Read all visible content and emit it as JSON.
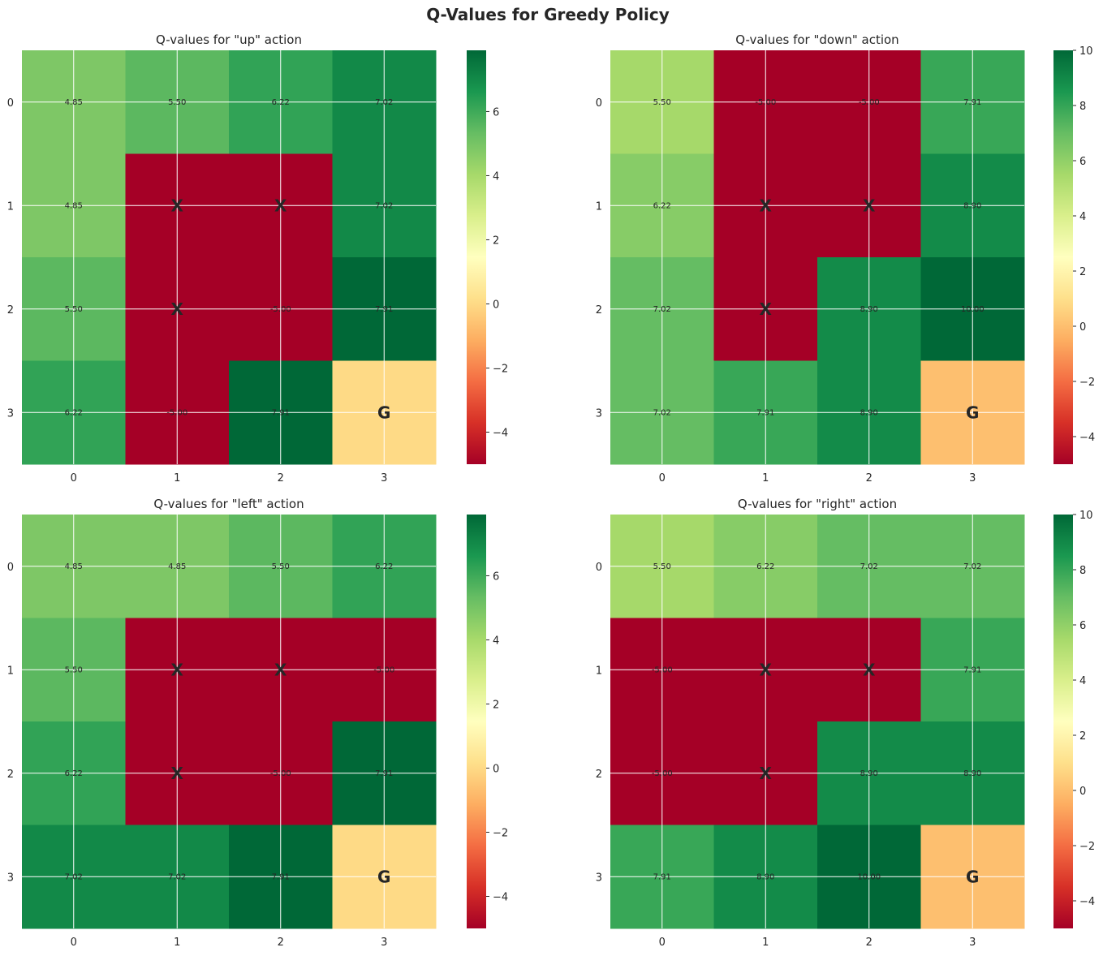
{
  "figure": {
    "title": "Q-Values for Greedy Policy"
  },
  "colormap": {
    "name": "RdYlGn",
    "stops": [
      "#a50026",
      "#d73027",
      "#f46d43",
      "#fdae61",
      "#fee08b",
      "#ffffbf",
      "#d9ef8b",
      "#a6d96a",
      "#66bd63",
      "#1a9850",
      "#006837"
    ]
  },
  "chart_data": [
    {
      "type": "heatmap",
      "title": "Q-values for \"up\" action",
      "x_ticks": [
        "0",
        "1",
        "2",
        "3"
      ],
      "y_ticks": [
        "0",
        "1",
        "2",
        "3"
      ],
      "values": [
        [
          4.85,
          5.5,
          6.22,
          7.02
        ],
        [
          4.85,
          -5.0,
          -5.0,
          7.02
        ],
        [
          5.5,
          -5.0,
          -5.0,
          7.91
        ],
        [
          6.22,
          -5.0,
          7.91,
          0.0
        ]
      ],
      "labels": [
        [
          "4.85",
          "5.50",
          "6.22",
          "7.02"
        ],
        [
          "4.85",
          "X",
          "X",
          "7.02"
        ],
        [
          "5.50",
          "X",
          "-5.00",
          "7.91"
        ],
        [
          "6.22",
          "-5.00",
          "7.91",
          "G"
        ]
      ],
      "vmin": -5.0,
      "vmax": 7.91,
      "colorbar_ticks": [
        -4,
        -2,
        0,
        2,
        4,
        6
      ],
      "colorbar_tick_labels": [
        "−4",
        "−2",
        "0",
        "2",
        "4",
        "6"
      ],
      "grid": true
    },
    {
      "type": "heatmap",
      "title": "Q-values for \"down\" action",
      "x_ticks": [
        "0",
        "1",
        "2",
        "3"
      ],
      "y_ticks": [
        "0",
        "1",
        "2",
        "3"
      ],
      "values": [
        [
          5.5,
          -5.0,
          -5.0,
          7.91
        ],
        [
          6.22,
          -5.0,
          -5.0,
          8.9
        ],
        [
          7.02,
          -5.0,
          8.9,
          10.0
        ],
        [
          7.02,
          7.91,
          8.9,
          0.0
        ]
      ],
      "labels": [
        [
          "5.50",
          "-5.00",
          "-5.00",
          "7.91"
        ],
        [
          "6.22",
          "X",
          "X",
          "8.90"
        ],
        [
          "7.02",
          "X",
          "8.90",
          "10.00"
        ],
        [
          "7.02",
          "7.91",
          "8.90",
          "G"
        ]
      ],
      "vmin": -5.0,
      "vmax": 10.0,
      "colorbar_ticks": [
        -4,
        -2,
        0,
        2,
        4,
        6,
        8,
        10
      ],
      "colorbar_tick_labels": [
        "−4",
        "−2",
        "0",
        "2",
        "4",
        "6",
        "8",
        "10"
      ],
      "grid": true
    },
    {
      "type": "heatmap",
      "title": "Q-values for \"left\" action",
      "x_ticks": [
        "0",
        "1",
        "2",
        "3"
      ],
      "y_ticks": [
        "0",
        "1",
        "2",
        "3"
      ],
      "values": [
        [
          4.85,
          4.85,
          5.5,
          6.22
        ],
        [
          5.5,
          -5.0,
          -5.0,
          -5.0
        ],
        [
          6.22,
          -5.0,
          -5.0,
          7.91
        ],
        [
          7.02,
          7.02,
          7.91,
          0.0
        ]
      ],
      "labels": [
        [
          "4.85",
          "4.85",
          "5.50",
          "6.22"
        ],
        [
          "5.50",
          "X",
          "X",
          "-5.00"
        ],
        [
          "6.22",
          "X",
          "-5.00",
          "7.91"
        ],
        [
          "7.02",
          "7.02",
          "7.91",
          "G"
        ]
      ],
      "vmin": -5.0,
      "vmax": 7.91,
      "colorbar_ticks": [
        -4,
        -2,
        0,
        2,
        4,
        6
      ],
      "colorbar_tick_labels": [
        "−4",
        "−2",
        "0",
        "2",
        "4",
        "6"
      ],
      "grid": true
    },
    {
      "type": "heatmap",
      "title": "Q-values for \"right\" action",
      "x_ticks": [
        "0",
        "1",
        "2",
        "3"
      ],
      "y_ticks": [
        "0",
        "1",
        "2",
        "3"
      ],
      "values": [
        [
          5.5,
          6.22,
          7.02,
          7.02
        ],
        [
          -5.0,
          -5.0,
          -5.0,
          7.91
        ],
        [
          -5.0,
          -5.0,
          8.9,
          8.9
        ],
        [
          7.91,
          8.9,
          10.0,
          0.0
        ]
      ],
      "labels": [
        [
          "5.50",
          "6.22",
          "7.02",
          "7.02"
        ],
        [
          "-5.00",
          "X",
          "X",
          "7.91"
        ],
        [
          "-5.00",
          "X",
          "8.90",
          "8.90"
        ],
        [
          "7.91",
          "8.90",
          "10.00",
          "G"
        ]
      ],
      "vmin": -5.0,
      "vmax": 10.0,
      "colorbar_ticks": [
        -4,
        -2,
        0,
        2,
        4,
        6,
        8,
        10
      ],
      "colorbar_tick_labels": [
        "−4",
        "−2",
        "0",
        "2",
        "4",
        "6",
        "8",
        "10"
      ],
      "grid": true
    }
  ]
}
